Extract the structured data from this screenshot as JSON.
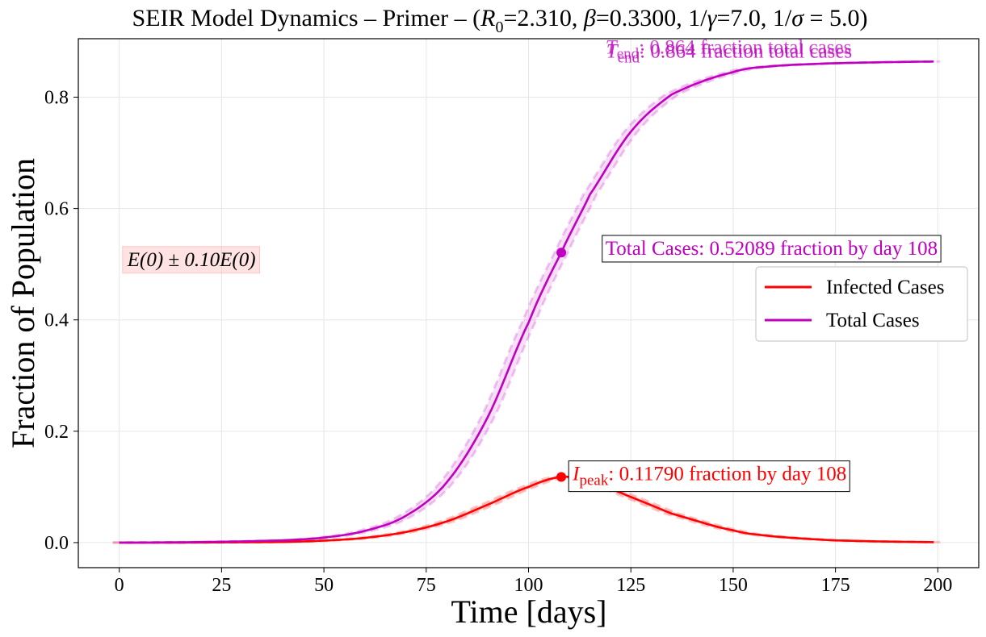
{
  "chart_data": {
    "type": "line",
    "title_parts": {
      "prefix": "SEIR Model Dynamics – Primer – (",
      "r0_symbol": "R",
      "r0_sub": "0",
      "r0_value": "=2.310, ",
      "beta_symbol": "β",
      "beta_value": "=0.3300, 1/",
      "gamma_symbol": "γ",
      "gamma_value": "=7.0, 1/",
      "sigma_symbol": "σ",
      "sigma_value": " = 5.0)"
    },
    "xlabel": "Time [days]",
    "ylabel": "Fraction of Population",
    "xlim": [
      -10,
      210
    ],
    "ylim": [
      -0.045,
      0.905
    ],
    "xticks": [
      0,
      25,
      50,
      75,
      100,
      125,
      150,
      175,
      200
    ],
    "yticks": [
      0.0,
      0.2,
      0.4,
      0.6,
      0.8
    ],
    "grid": true,
    "legend_position": "center-right",
    "band_label": {
      "text": "E(0) ± 0.10E(0)",
      "x": 1,
      "y": 0.51
    },
    "series": [
      {
        "name": "Infected Cases",
        "color": "#ff0000",
        "x": [
          0,
          20,
          40,
          50,
          60,
          70,
          80,
          90,
          100,
          108,
          115,
          125,
          135,
          150,
          160,
          175,
          199
        ],
        "values": [
          0.0,
          0.0002,
          0.0012,
          0.0035,
          0.0085,
          0.019,
          0.038,
          0.068,
          0.1,
          0.1179,
          0.11,
          0.082,
          0.052,
          0.022,
          0.011,
          0.004,
          0.0008
        ],
        "peak": {
          "x": 108,
          "y": 0.1179
        }
      },
      {
        "name": "Total Cases",
        "color": "#bf00bf",
        "x": [
          0,
          20,
          40,
          50,
          60,
          70,
          80,
          90,
          100,
          108,
          115,
          125,
          135,
          150,
          160,
          175,
          199
        ],
        "values": [
          0.0,
          0.001,
          0.004,
          0.009,
          0.021,
          0.048,
          0.108,
          0.225,
          0.395,
          0.5209,
          0.625,
          0.738,
          0.805,
          0.845,
          0.856,
          0.861,
          0.864
        ],
        "marker": {
          "x": 108,
          "y": 0.52089
        }
      }
    ],
    "annotations": {
      "peak_symbol": "I",
      "peak_sub": "peak",
      "peak_text": ": 0.11790 fraction by day 108",
      "peak_label_at": {
        "x": 110,
        "y": 0.125
      },
      "total_text": "Total Cases: 0.52089 fraction by day 108",
      "total_label_at": {
        "x": 118,
        "y": 0.53
      },
      "end_symbol": "T",
      "end_sub": "end",
      "end_text": ": 0.864 fraction total cases",
      "end_label_at": {
        "x": 119,
        "y": 0.874
      }
    },
    "legend": [
      "Infected Cases",
      "Total Cases"
    ]
  }
}
